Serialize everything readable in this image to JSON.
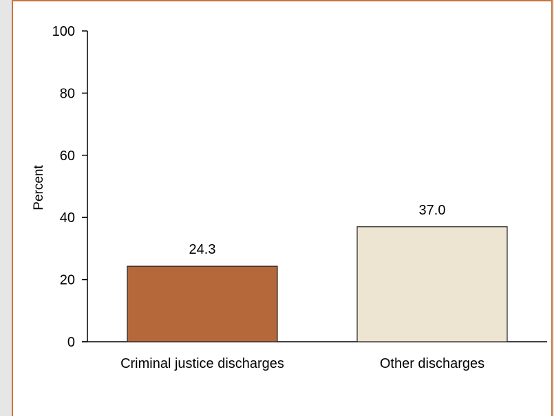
{
  "chart_data": {
    "type": "bar",
    "categories": [
      "Criminal justice discharges",
      "Other discharges"
    ],
    "values": [
      24.3,
      37.0
    ],
    "value_labels": [
      "24.3",
      "37.0"
    ],
    "title": "",
    "xlabel": "",
    "ylabel": "Percent",
    "ylim": [
      0,
      100
    ],
    "yticks": [
      0,
      20,
      40,
      60,
      80,
      100
    ],
    "grid": false,
    "legend": "none",
    "colors": [
      "#b5693a",
      "#ede4d1"
    ],
    "bar_edge_color": "#222222",
    "frame_color": "#c8743c"
  }
}
